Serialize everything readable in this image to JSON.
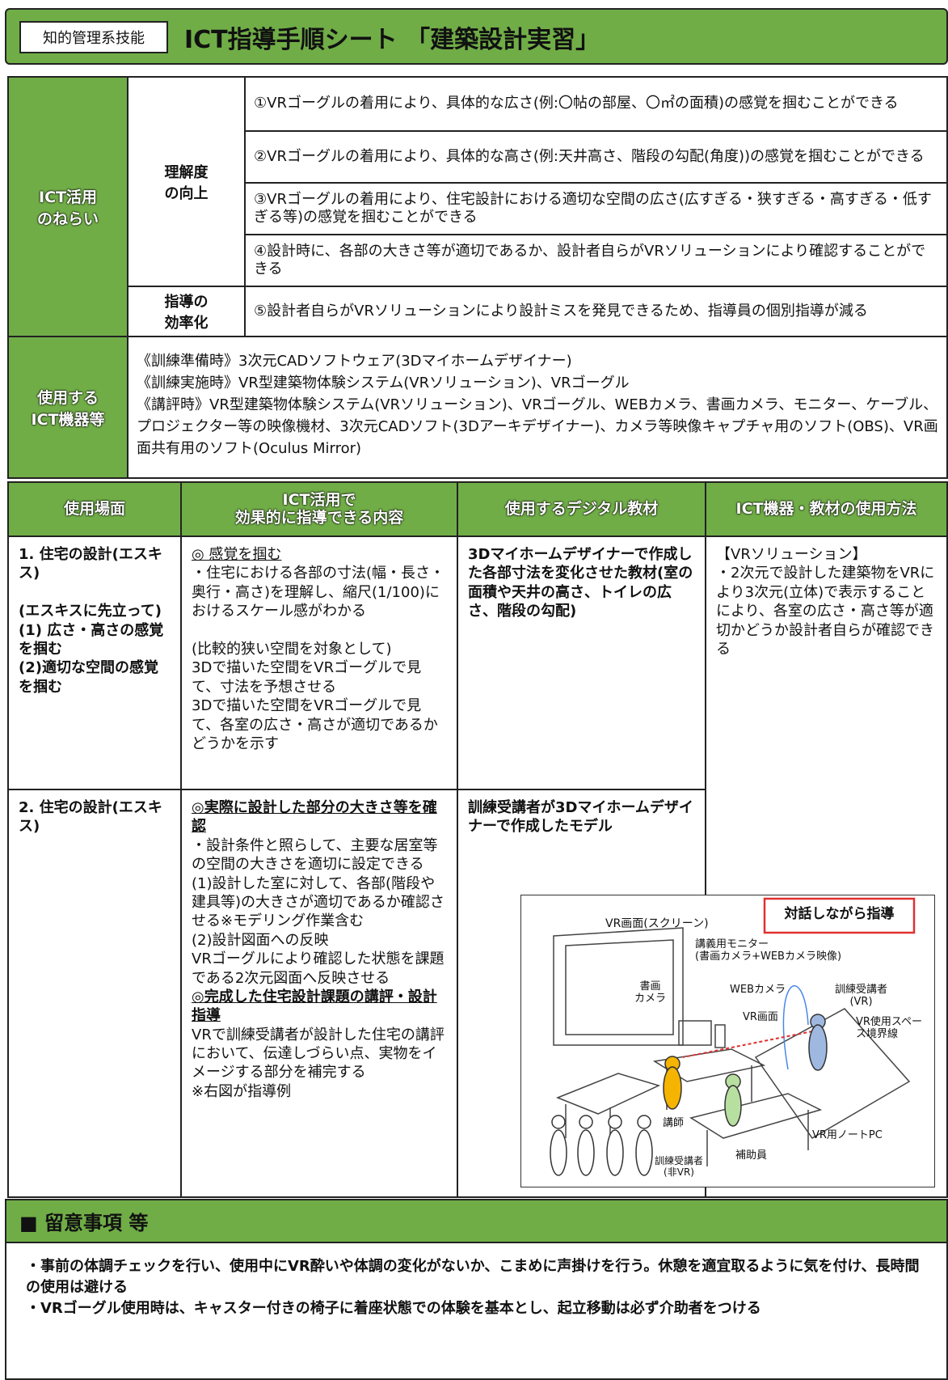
{
  "header": {
    "badge": "知的管理系技能",
    "title": "ICT指導手順シート 「建築設計実習」"
  },
  "aims": {
    "label": "ICT活用\nのねらい",
    "groups": [
      {
        "label": "理解度\nの向上",
        "items": [
          "①VRゴーグルの着用により、具体的な広さ(例:〇帖の部屋、〇㎡の面積)の感覚を掴むことができる",
          "②VRゴーグルの着用により、具体的な高さ(例:天井高さ、階段の勾配(角度))の感覚を掴むことができる",
          "③VRゴーグルの着用により、住宅設計における適切な空間の広さ(広すぎる・狭すぎる・高すぎる・低すぎる等)の感覚を掴むことができる",
          "④設計時に、各部の大きさ等が適切であるか、設計者自らがVRソリューションにより確認することができる"
        ]
      },
      {
        "label": "指導の\n効率化",
        "items": [
          "⑤設計者自らがVRソリューションにより設計ミスを発見できるため、指導員の個別指導が減る"
        ]
      }
    ]
  },
  "devices": {
    "label": "使用する\nICT機器等",
    "lines": [
      "《訓練準備時》3次元CADソフトウェア(3Dマイホームデザイナー)",
      "《訓練実施時》VR型建築物体験システム(VRソリューション)、VRゴーグル",
      "《講評時》VR型建築物体験システム(VRソリューション)、VRゴーグル、WEBカメラ、書画カメラ、モニター、ケーブル、プロジェクター等の映像機材、3次元CADソフト(3Dアーキデザイナー)、カメラ等映像キャプチャ用のソフト(OBS)、VR画面共有用のソフト(Oculus Mirror)"
    ]
  },
  "table": {
    "headers": [
      "使用場面",
      "ICT活用で\n効果的に指導できる内容",
      "使用するデジタル教材",
      "ICT機器・教材の使用方法"
    ],
    "rows": [
      {
        "scene": "1. 住宅の設計(エスキス)\n\n(エスキスに先立って)\n(1) 広さ・高さの感覚を掴む\n(2)適切な空間の感覚を掴む",
        "content": [
          {
            "heading": "◎ 感覚を掴む",
            "body": "・住宅における各部の寸法(幅・長さ・奥行・高さ)を理解し、縮尺(1/100)におけるスケール感がわかる\n\n(比較的狭い空間を対象として)\n3Dで描いた空間をVRゴーグルで見て、寸法を予想させる\n3Dで描いた空間をVRゴーグルで見て、各室の広さ・高さが適切であるかどうかを示す"
          }
        ],
        "material": "3Dマイホームデザイナーで作成した各部寸法を変化させた教材(室の面積や天井の高さ、トイレの広さ、階段の勾配)",
        "method": "【VRソリューション】\n・2次元で設計した建築物をVRにより3次元(立体)で表示することにより、各室の広さ・高さ等が適切かどうか設計者自らが確認できる"
      },
      {
        "scene": "2. 住宅の設計(エスキス)",
        "content": [
          {
            "heading": "◎実際に設計した部分の大きさ等を確認",
            "body": "・設計条件と照らして、主要な居室等の空間の大きさを適切に設定できる\n(1)設計した室に対して、各部(階段や建具等)の大きさが適切であるか確認させる※モデリング作業含む\n(2)設計図面への反映\nVRゴーグルにより確認した状態を課題である2次元図面へ反映させる"
          },
          {
            "heading": "◎完成した住宅設計課題の講評・設計指導",
            "body": "VRで訓練受講者が設計した住宅の講評において、伝達しづらい点、実物をイメージする部分を補完する\n※右図が指導例"
          }
        ],
        "material": "訓練受講者が3Dマイホームデザイナーで作成したモデル"
      }
    ]
  },
  "figure": {
    "callout": "対話しながら指導",
    "screen": "VR画面(スクリーン)",
    "monitor": "講義用モニター\n(書画カメラ+WEBカメラ映像)",
    "doc_camera": "書画\nカメラ",
    "web_camera": "WEBカメラ",
    "vr_view": "VR画面",
    "trainee_vr": "訓練受講者\n(VR)",
    "boundary": "VR使用スペース境界線",
    "instructor": "講師",
    "notebook": "VR用ノートPC",
    "assistant": "補助員",
    "trainee_non_vr": "訓練受講者\n(非VR)"
  },
  "notes": {
    "title": "■ 留意事項 等",
    "items": [
      "・事前の体調チェックを行い、使用中にVR酔いや体調の変化がないか、こまめに声掛けを行う。休憩を適宜取るように気を付け、長時間の使用は避ける",
      "・VRゴーグル使用時は、キャスター付きの椅子に着座状態での体験を基本とし、起立移動は必ず介助者をつける"
    ]
  }
}
